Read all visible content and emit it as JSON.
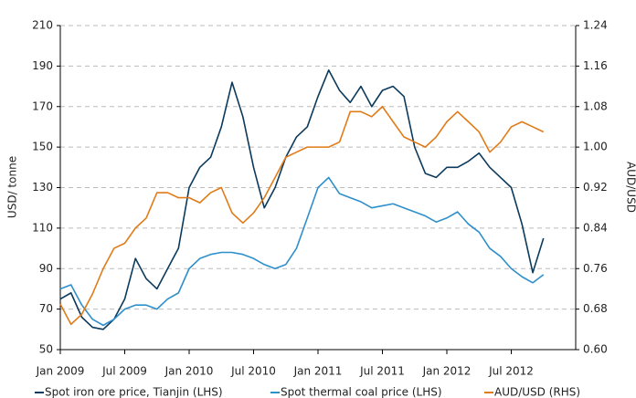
{
  "chart_data": {
    "type": "line",
    "y_label": "USD/ tonne",
    "y2_label": "AUD/USD",
    "xlim": [
      2009,
      2013.0
    ],
    "xticks": [
      {
        "value": 2009,
        "label": "Jan 2009"
      },
      {
        "value": 2009.5,
        "label": "Jul 2009"
      },
      {
        "value": 2010,
        "label": "Jan 2010"
      },
      {
        "value": 2010.5,
        "label": "Jul 2010"
      },
      {
        "value": 2011,
        "label": "Jan 2011"
      },
      {
        "value": 2011.5,
        "label": "Jul 2011"
      },
      {
        "value": 2012,
        "label": "Jan 2012"
      },
      {
        "value": 2012.5,
        "label": "Jul 2012"
      }
    ],
    "ylim": [
      50,
      210
    ],
    "yticks": [
      50,
      70,
      90,
      110,
      130,
      150,
      170,
      190,
      210
    ],
    "y2lim": [
      0.6,
      1.24
    ],
    "y2ticks": [
      {
        "value": 0.6,
        "label": "0.60"
      },
      {
        "value": 0.68,
        "label": "0.68"
      },
      {
        "value": 0.76,
        "label": "0.76"
      },
      {
        "value": 0.84,
        "label": "0.84"
      },
      {
        "value": 0.92,
        "label": "0.92"
      },
      {
        "value": 1.0,
        "label": "1.00"
      },
      {
        "value": 1.08,
        "label": "1.08"
      },
      {
        "value": 1.16,
        "label": "1.16"
      },
      {
        "value": 1.24,
        "label": "1.24"
      }
    ],
    "grid": true,
    "x": [
      2009,
      2009.083,
      2009.167,
      2009.25,
      2009.333,
      2009.417,
      2009.5,
      2009.583,
      2009.667,
      2009.75,
      2009.833,
      2009.917,
      2010,
      2010.083,
      2010.167,
      2010.25,
      2010.333,
      2010.417,
      2010.5,
      2010.583,
      2010.667,
      2010.75,
      2010.833,
      2010.917,
      2011,
      2011.083,
      2011.167,
      2011.25,
      2011.333,
      2011.417,
      2011.5,
      2011.583,
      2011.667,
      2011.75,
      2011.833,
      2011.917,
      2012,
      2012.083,
      2012.167,
      2012.25,
      2012.333,
      2012.417,
      2012.5,
      2012.583,
      2012.667,
      2012.75
    ],
    "series": [
      {
        "name": "Spot iron ore price, Tianjin (LHS)",
        "color": "#0b3a5c",
        "values": [
          75,
          78,
          66,
          61,
          60,
          65,
          75,
          95,
          85,
          80,
          90,
          100,
          130,
          140,
          145,
          160,
          182,
          165,
          140,
          120,
          130,
          145,
          155,
          160,
          175,
          188,
          178,
          172,
          180,
          170,
          178,
          180,
          175,
          150,
          137,
          135,
          140,
          140,
          143,
          147,
          140,
          135,
          130,
          112,
          88,
          105
        ]
      },
      {
        "name": "Spot thermal coal price (LHS)",
        "color": "#2f8fcb",
        "values": [
          80,
          82,
          72,
          65,
          62,
          65,
          70,
          72,
          72,
          70,
          75,
          78,
          90,
          95,
          97,
          98,
          98,
          97,
          95,
          92,
          90,
          92,
          100,
          115,
          130,
          135,
          127,
          125,
          123,
          120,
          121,
          122,
          120,
          118,
          116,
          113,
          115,
          118,
          112,
          108,
          100,
          96,
          90,
          86,
          83,
          87
        ]
      },
      {
        "name": "AUD/USD (RHS)",
        "color": "#e07b1a",
        "axis": "y2",
        "values": [
          0.69,
          0.65,
          0.67,
          0.71,
          0.76,
          0.8,
          0.81,
          0.84,
          0.86,
          0.91,
          0.91,
          0.9,
          0.9,
          0.89,
          0.91,
          0.92,
          0.87,
          0.85,
          0.87,
          0.9,
          0.94,
          0.98,
          0.99,
          1.0,
          1.0,
          1.0,
          1.01,
          1.07,
          1.07,
          1.06,
          1.08,
          1.05,
          1.02,
          1.01,
          1.0,
          1.02,
          1.05,
          1.07,
          1.05,
          1.03,
          0.99,
          1.01,
          1.04,
          1.05,
          1.04,
          1.03
        ]
      }
    ]
  }
}
